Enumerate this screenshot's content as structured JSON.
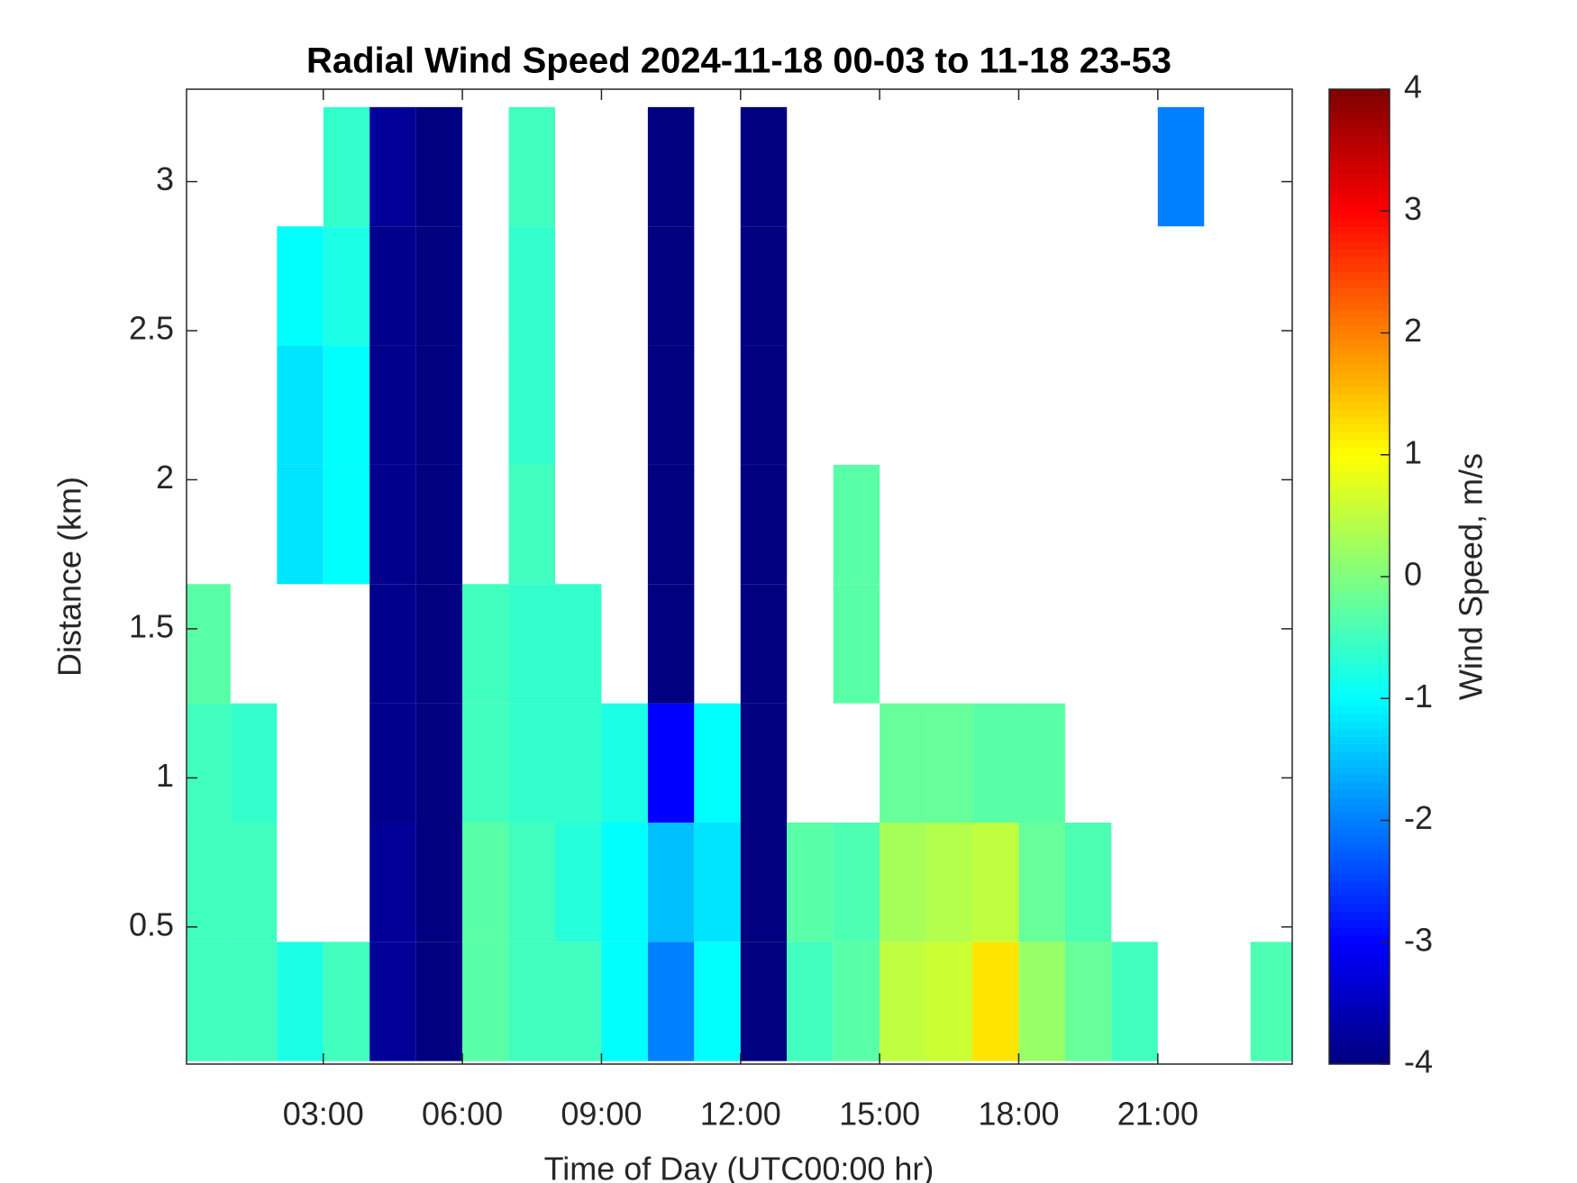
{
  "chart_data": {
    "type": "heatmap",
    "title": "Radial Wind Speed 2024-11-18 00-03 to 11-18 23-53",
    "x_label": "Time of Day (UTC00:00 hr)",
    "y_label": "Distance (km)",
    "colorbar_label": "Wind Speed, m/s",
    "xlim": [
      0.05,
      23.9
    ],
    "ylim": [
      0.04,
      3.31
    ],
    "xticks": [
      {
        "value": 3,
        "label": "03:00"
      },
      {
        "value": 6,
        "label": "06:00"
      },
      {
        "value": 9,
        "label": "09:00"
      },
      {
        "value": 12,
        "label": "12:00"
      },
      {
        "value": 15,
        "label": "15:00"
      },
      {
        "value": 18,
        "label": "18:00"
      },
      {
        "value": 21,
        "label": "21:00"
      }
    ],
    "yticks": [
      0.5,
      1,
      1.5,
      2,
      2.5,
      3
    ],
    "clim": [
      -4,
      4
    ],
    "cticks": [
      -4,
      -3,
      -2,
      -1,
      0,
      1,
      2,
      3,
      4
    ],
    "colormap": "jet",
    "x": [
      0.5,
      1.5,
      2.5,
      3.5,
      4.5,
      5.5,
      6.5,
      7.5,
      8.5,
      9.5,
      10.5,
      11.5,
      12.5,
      13.5,
      14.5,
      15.5,
      16.5,
      17.5,
      18.5,
      19.5,
      20.5,
      21.5,
      22.5,
      23.5
    ],
    "y": [
      0.25,
      0.65,
      1.05,
      1.45,
      1.85,
      2.25,
      2.65,
      3.05
    ],
    "z": [
      [
        -0.5,
        -0.5,
        -0.5,
        -0.3,
        null,
        null,
        null,
        null
      ],
      [
        -0.5,
        -0.5,
        -0.6,
        null,
        null,
        null,
        null,
        null
      ],
      [
        -0.8,
        null,
        null,
        null,
        -1.2,
        -1.2,
        -1,
        null
      ],
      [
        -0.5,
        null,
        null,
        null,
        -1,
        -1,
        -0.8,
        -0.6
      ],
      [
        -3.8,
        -3.8,
        -3.9,
        -3.9,
        -3.9,
        -3.9,
        -3.9,
        -3.8
      ],
      [
        -4,
        -4,
        -4,
        -4,
        -4,
        -4,
        -4,
        -4
      ],
      [
        -0.3,
        -0.3,
        -0.5,
        -0.5,
        null,
        null,
        null,
        null
      ],
      [
        -0.5,
        -0.5,
        -0.6,
        -0.6,
        -0.5,
        -0.6,
        -0.6,
        -0.5
      ],
      [
        -0.5,
        -0.7,
        -0.6,
        -0.6,
        null,
        null,
        null,
        null
      ],
      [
        -1,
        -1,
        -0.8,
        null,
        null,
        null,
        null,
        null
      ],
      [
        -2,
        -1.5,
        -3,
        -4,
        -4,
        -4,
        -4,
        -4
      ],
      [
        -1,
        -1.2,
        -1,
        null,
        null,
        null,
        null,
        null
      ],
      [
        -4,
        -4,
        -4,
        -4,
        -4,
        -4,
        -4,
        -4
      ],
      [
        -0.5,
        -0.3,
        null,
        null,
        null,
        null,
        null,
        null
      ],
      [
        -0.3,
        -0.4,
        null,
        -0.3,
        -0.3,
        null,
        null,
        null
      ],
      [
        0.5,
        0.3,
        -0.2,
        null,
        null,
        null,
        null,
        null
      ],
      [
        0.6,
        0.4,
        -0.2,
        null,
        null,
        null,
        null,
        null
      ],
      [
        1.2,
        0.5,
        -0.3,
        null,
        null,
        null,
        null,
        null
      ],
      [
        0.2,
        -0.2,
        -0.3,
        null,
        null,
        null,
        null,
        null
      ],
      [
        -0.2,
        -0.4,
        null,
        null,
        null,
        null,
        null,
        null
      ],
      [
        -0.5,
        null,
        null,
        null,
        null,
        null,
        null,
        null
      ],
      [
        null,
        null,
        null,
        null,
        null,
        null,
        null,
        -2
      ],
      [
        null,
        null,
        null,
        null,
        null,
        null,
        null,
        null
      ],
      [
        -0.4,
        null,
        null,
        null,
        null,
        null,
        null,
        null
      ]
    ]
  }
}
